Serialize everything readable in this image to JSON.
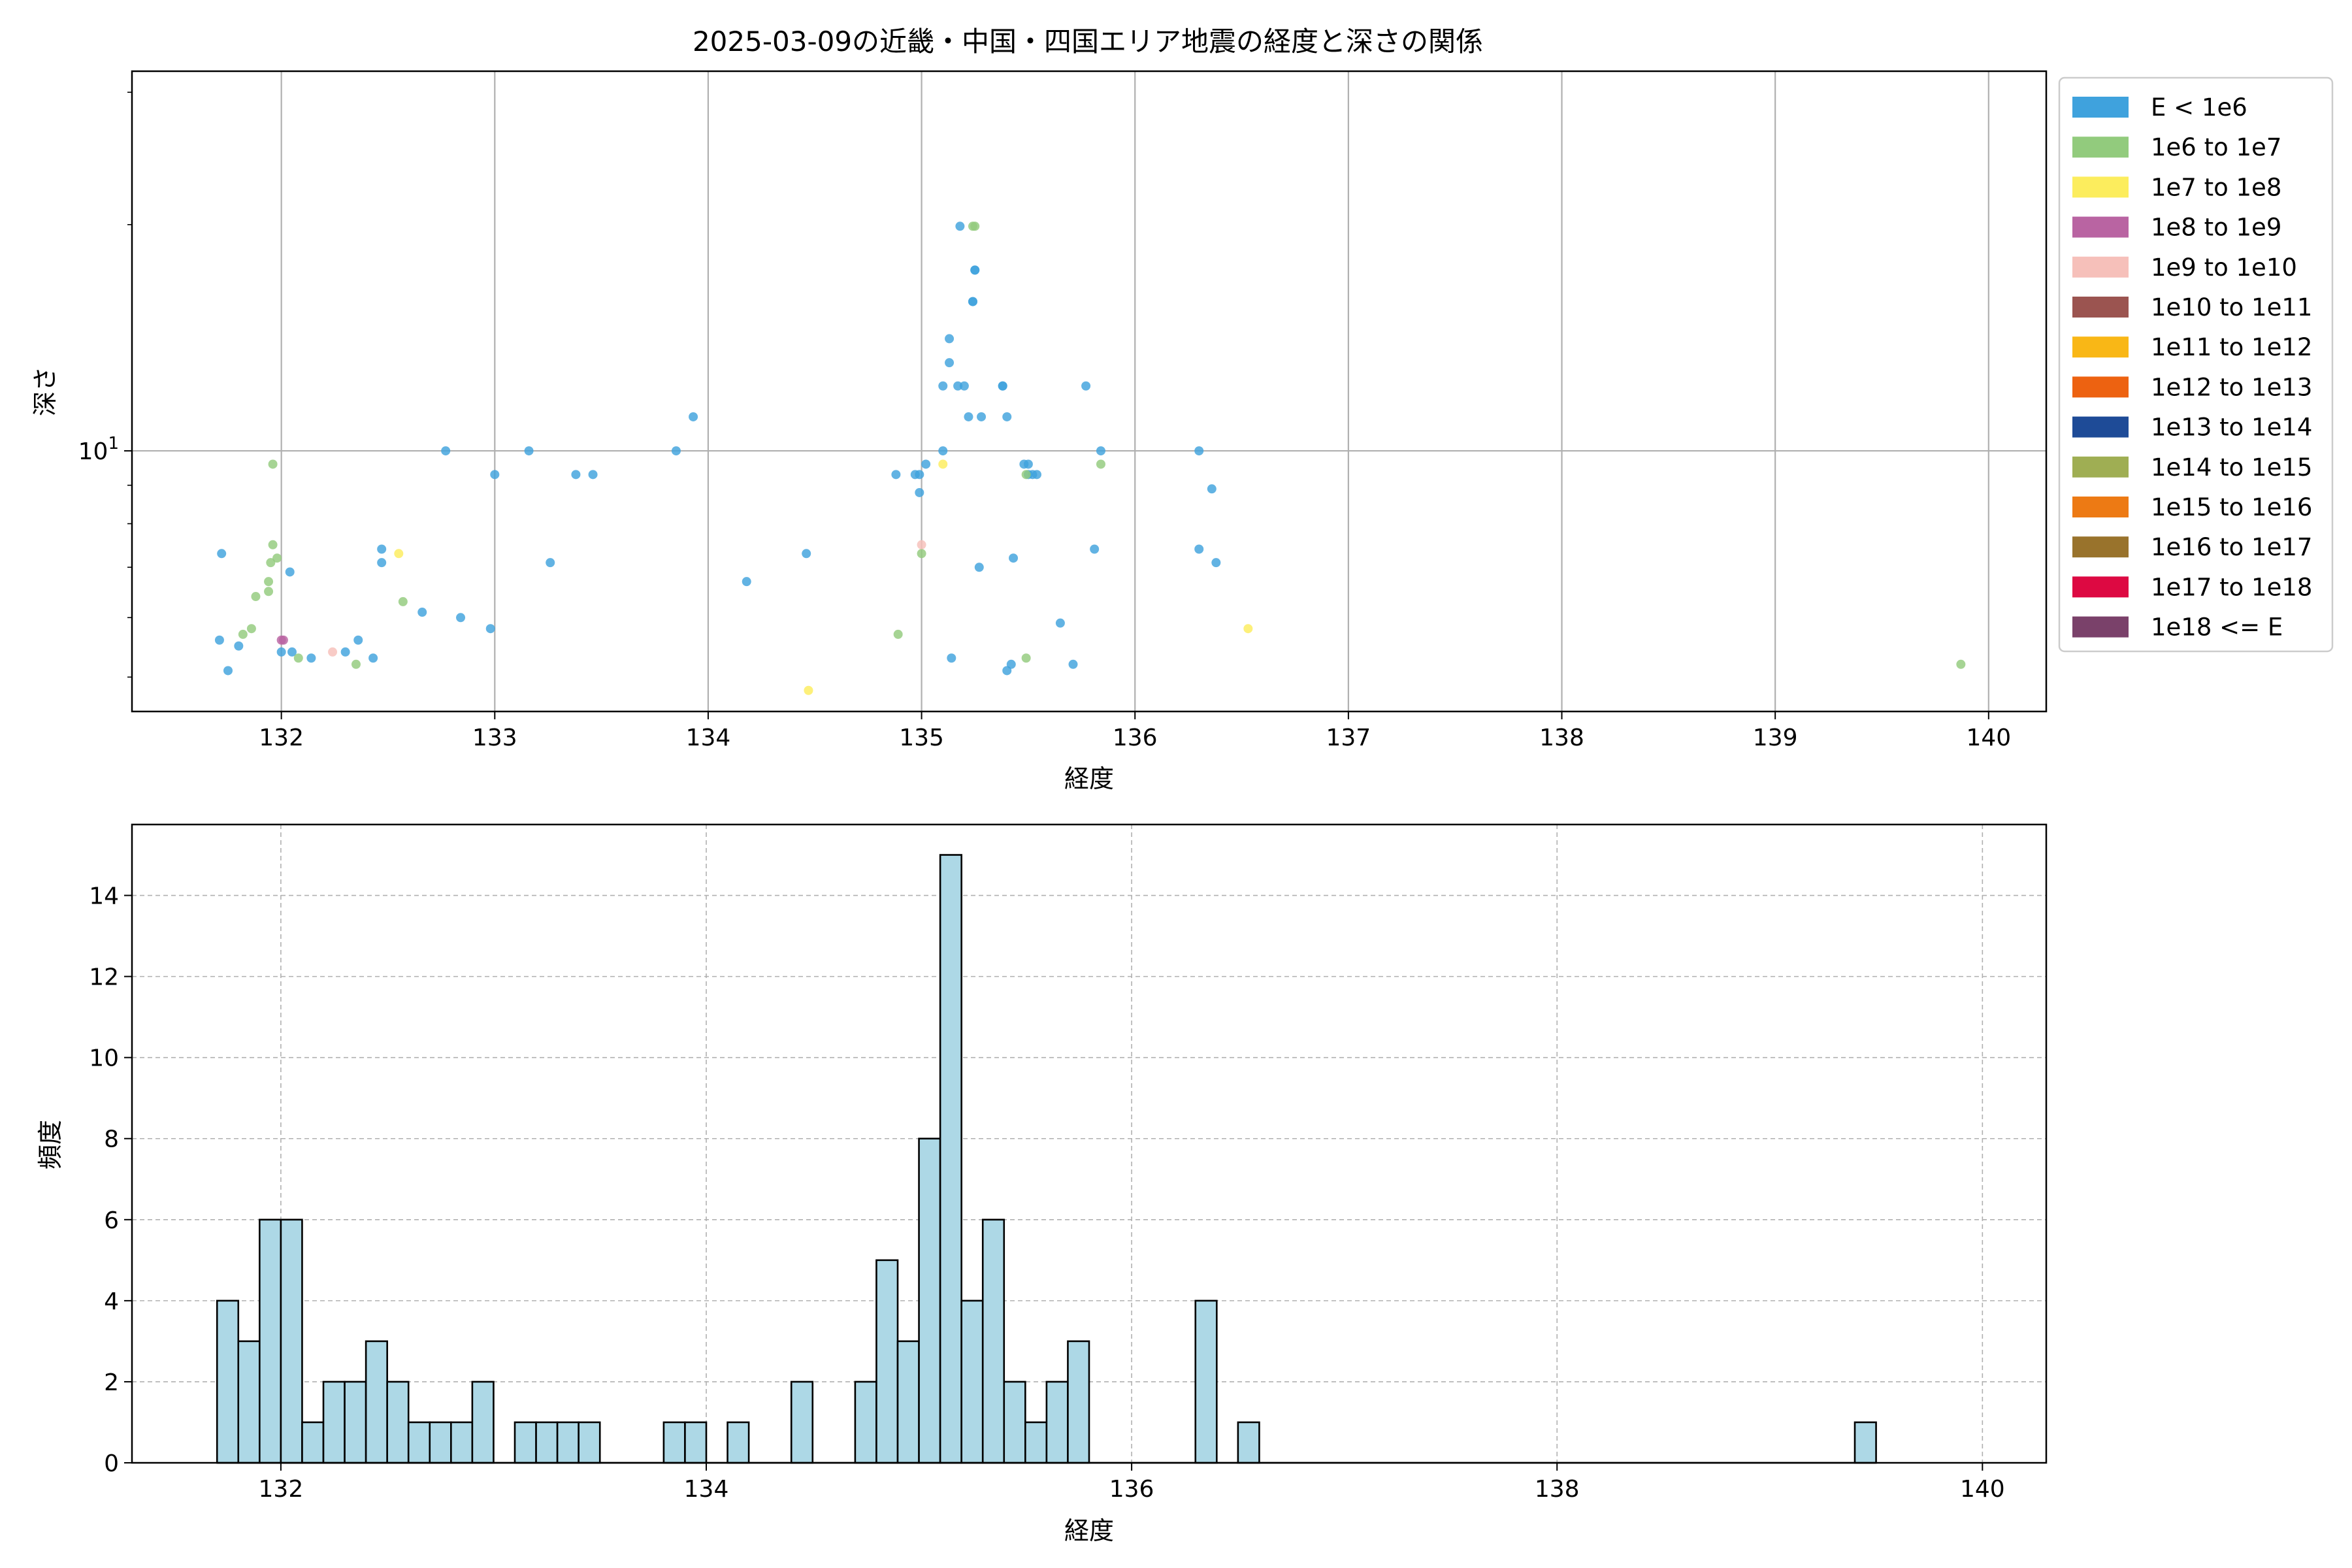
{
  "chart_data": [
    {
      "type": "scatter",
      "title": "2025-03-09の近畿・中国・四国エリア地震の経度と深さの関係",
      "xlabel": "経度",
      "ylabel": "深さ",
      "xlim": [
        131.3,
        140.27
      ],
      "ylim": [
        4.5,
        32
      ],
      "yscale": "log",
      "grid": true,
      "x_ticks": [
        132,
        133,
        134,
        135,
        136,
        137,
        138,
        139,
        140
      ],
      "y_ticks": [
        {
          "value": 10,
          "label": "10",
          "exp": "1"
        }
      ],
      "legend_position": "outside-right",
      "legend": [
        {
          "label": "E < 1e6",
          "color": "#3fa2dd"
        },
        {
          "label": "1e6 to 1e7",
          "color": "#92cb7d"
        },
        {
          "label": "1e7 to 1e8",
          "color": "#fced5d"
        },
        {
          "label": "1e8 to 1e9",
          "color": "#b964a2"
        },
        {
          "label": "1e9 to 1e10",
          "color": "#f6c0ba"
        },
        {
          "label": "1e10 to 1e11",
          "color": "#9b5450"
        },
        {
          "label": "1e11 to 1e12",
          "color": "#f9b716"
        },
        {
          "label": "1e12 to 1e13",
          "color": "#ed6211"
        },
        {
          "label": "1e13 to 1e14",
          "color": "#1e4b97"
        },
        {
          "label": "1e14 to 1e15",
          "color": "#9fae53"
        },
        {
          "label": "1e15 to 1e16",
          "color": "#ed7a14"
        },
        {
          "label": "1e16 to 1e17",
          "color": "#99732c"
        },
        {
          "label": "1e17 to 1e18",
          "color": "#dd0942"
        },
        {
          "label": "1e18 <= E",
          "color": "#7a416a"
        }
      ],
      "series": [
        {
          "class": 0,
          "x": [
            131.71,
            131.72,
            131.75,
            131.8,
            132.0,
            132.04,
            132.05,
            132.14,
            132.3,
            132.36,
            132.43,
            132.47,
            132.47,
            132.66,
            132.77,
            132.84,
            132.98,
            133.0,
            133.16,
            133.26,
            133.38,
            133.46,
            133.85,
            133.93,
            134.18,
            134.46,
            134.88,
            134.97,
            134.99,
            134.99,
            135.02,
            135.1,
            135.1,
            135.13,
            135.13,
            135.14,
            135.17,
            135.18,
            135.2,
            135.22,
            135.24,
            135.24,
            135.25,
            135.25,
            135.27,
            135.28,
            135.38,
            135.38,
            135.4,
            135.4,
            135.42,
            135.43,
            135.48,
            135.5,
            135.5,
            135.52,
            135.54,
            135.65,
            135.71,
            135.77,
            135.81,
            135.84,
            136.3,
            136.3,
            136.36,
            136.38
          ],
          "y": [
            5.6,
            7.3,
            5.1,
            5.5,
            5.4,
            6.9,
            5.4,
            5.3,
            5.4,
            5.6,
            5.3,
            7.4,
            7.1,
            6.1,
            10.0,
            6.0,
            5.8,
            9.3,
            10.0,
            7.1,
            9.3,
            9.3,
            10.0,
            11.1,
            6.7,
            7.3,
            9.3,
            9.3,
            8.8,
            9.3,
            9.6,
            10.0,
            12.2,
            14.1,
            13.1,
            5.3,
            12.2,
            19.9,
            12.2,
            11.1,
            15.8,
            15.8,
            17.4,
            17.4,
            7.0,
            11.1,
            12.2,
            12.2,
            11.1,
            5.1,
            5.2,
            7.2,
            9.6,
            9.6,
            9.3,
            9.3,
            9.3,
            5.9,
            5.2,
            12.2,
            7.4,
            10.0,
            10.0,
            7.4,
            8.9,
            7.1
          ]
        },
        {
          "class": 1,
          "x": [
            131.82,
            131.86,
            131.88,
            131.94,
            131.94,
            131.95,
            131.96,
            131.96,
            131.98,
            132.08,
            132.35,
            132.57,
            134.89,
            135.0,
            135.24,
            135.25,
            135.49,
            135.49,
            135.84,
            139.87
          ],
          "y": [
            5.7,
            5.8,
            6.4,
            6.5,
            6.7,
            7.1,
            7.5,
            9.6,
            7.2,
            5.3,
            5.2,
            6.3,
            5.7,
            7.3,
            19.9,
            19.9,
            5.3,
            9.3,
            9.6,
            5.2
          ]
        },
        {
          "class": 2,
          "x": [
            132.55,
            134.47,
            135.1,
            136.53
          ],
          "y": [
            7.3,
            4.8,
            9.6,
            5.8
          ]
        },
        {
          "class": 3,
          "x": [
            132.01,
            132.0
          ],
          "y": [
            5.6,
            5.6
          ]
        },
        {
          "class": 4,
          "x": [
            132.24,
            135.0
          ],
          "y": [
            5.4,
            7.5
          ]
        }
      ]
    },
    {
      "type": "histogram",
      "xlabel": "経度",
      "ylabel": "頻度",
      "xlim": [
        131.3,
        140.3
      ],
      "ylim": [
        0,
        15.75
      ],
      "grid": "dashed",
      "x_ticks": [
        132,
        134,
        136,
        138,
        140
      ],
      "y_ticks": [
        0,
        2,
        4,
        6,
        8,
        10,
        12,
        14
      ],
      "bar_color": "#add8e6",
      "bin_start": 131.7,
      "bin_width": 0.1,
      "values": [
        4,
        3,
        6,
        6,
        1,
        2,
        2,
        3,
        2,
        1,
        1,
        1,
        2,
        0,
        1,
        1,
        1,
        1,
        0,
        0,
        0,
        1,
        1,
        0,
        1,
        0,
        0,
        2,
        0,
        0,
        2,
        5,
        3,
        8,
        15,
        4,
        6,
        2,
        1,
        2,
        3,
        0,
        0,
        0,
        0,
        0,
        4,
        0,
        1,
        0,
        0,
        0,
        0,
        0,
        0,
        0,
        0,
        0,
        0,
        0,
        0,
        0,
        0,
        0,
        0,
        0,
        0,
        0,
        0,
        0,
        0,
        0,
        0,
        0,
        0,
        0,
        0,
        1
      ]
    }
  ]
}
